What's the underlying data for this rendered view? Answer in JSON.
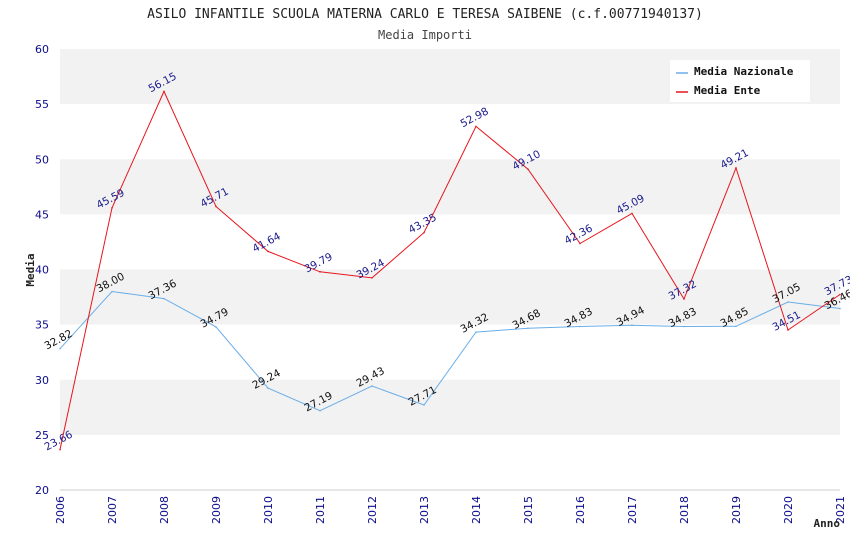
{
  "chart_data": {
    "type": "line",
    "title": "ASILO INFANTILE SCUOLA MATERNA CARLO E TERESA SAIBENE (c.f.00771940137)",
    "subtitle": "Media Importi",
    "xlabel": "Anno",
    "ylabel": "Media",
    "ylim": [
      20,
      60
    ],
    "y_ticks": [
      "20",
      "25",
      "30",
      "35",
      "40",
      "45",
      "50",
      "55",
      "60"
    ],
    "x": [
      "2006",
      "2007",
      "2008",
      "2009",
      "2010",
      "2011",
      "2012",
      "2013",
      "2014",
      "2015",
      "2016",
      "2017",
      "2018",
      "2019",
      "2020",
      "2021"
    ],
    "grid": "horizontal bands",
    "legend_position": "top-right",
    "series": [
      {
        "name": "Media Nazionale",
        "color": "#6aaee8",
        "label_color": "#111111",
        "values": [
          32.82,
          38.0,
          37.36,
          34.79,
          29.24,
          27.19,
          29.43,
          27.71,
          34.32,
          34.68,
          34.83,
          34.94,
          34.83,
          34.85,
          37.05,
          36.46
        ],
        "labels": [
          "32.82",
          "38.00",
          "37.36",
          "34.79",
          "29.24",
          "27.19",
          "29.43",
          "27.71",
          "34.32",
          "34.68",
          "34.83",
          "34.94",
          "34.83",
          "34.85",
          "37.05",
          "36.46"
        ]
      },
      {
        "name": "Media Ente",
        "color": "#e8141c",
        "label_color": "#1a1a8c",
        "values": [
          23.66,
          45.59,
          56.15,
          45.71,
          41.64,
          39.79,
          39.24,
          43.35,
          52.98,
          49.1,
          42.36,
          45.09,
          37.32,
          49.21,
          34.51,
          37.73
        ],
        "labels": [
          "23.66",
          "45.59",
          "56.15",
          "45.71",
          "41.64",
          "39.79",
          "39.24",
          "43.35",
          "52.98",
          "49.10",
          "42.36",
          "45.09",
          "37.32",
          "49.21",
          "34.51",
          "37.73"
        ]
      }
    ]
  }
}
